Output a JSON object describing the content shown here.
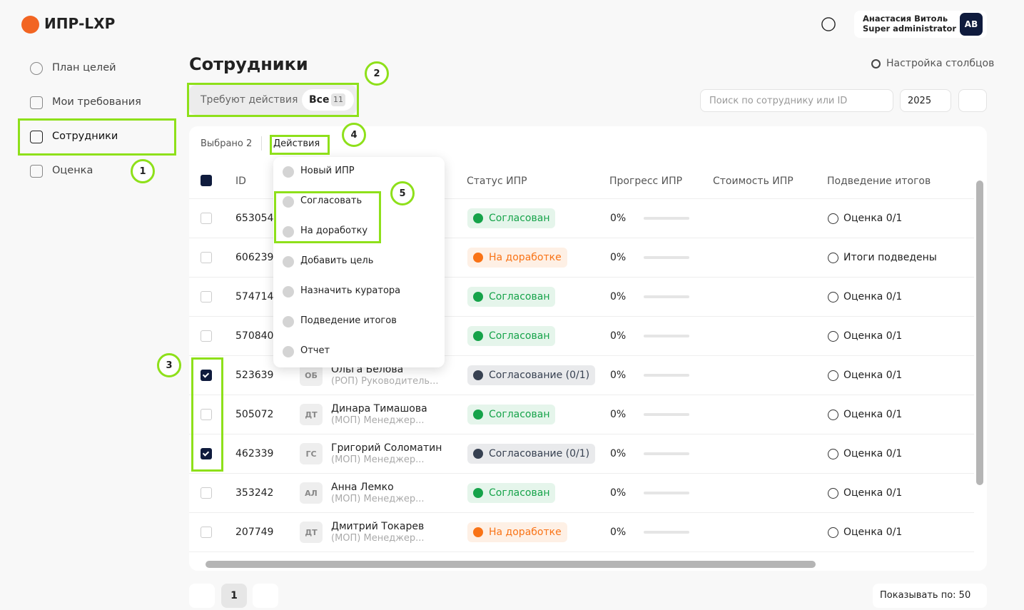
{
  "header": {
    "logo": "ИПР-LXP",
    "user_name": "Анастасия Витоль",
    "user_role": "Super administrator ru",
    "avatar": "АВ"
  },
  "sidebar": {
    "items": [
      "План целей",
      "Мои требования",
      "Сотрудники",
      "Оценка"
    ],
    "active": 2
  },
  "page": {
    "title": "Сотрудники",
    "column_settings": "Настройка столбцов",
    "tabs": [
      "Требуют действия",
      "Все"
    ],
    "tab_count": "11",
    "search_placeholder": "Поиск по сотруднику или ID",
    "year": "2025"
  },
  "toolbar": {
    "selected": "Выбрано 2",
    "actions": "Действия"
  },
  "menu": [
    "Новый ИПР",
    "Согласовать",
    "На доработку",
    "Добавить цель",
    "Назначить куратора",
    "Подведение итогов",
    "Отчет"
  ],
  "table": {
    "columns": [
      "ID",
      "Статус ИПР",
      "Прогресс ИПР",
      "Стоимость ИПР",
      "Подведение итогов"
    ],
    "rows": [
      {
        "id": "653054",
        "status": "Согласован",
        "status_color": "#16a34a",
        "progress": "0%",
        "summary": "Оценка 0/1",
        "checked": false
      },
      {
        "id": "606239",
        "status": "На доработке",
        "status_color": "#f97316",
        "progress": "0%",
        "summary": "Итоги подведены",
        "checked": false
      },
      {
        "id": "574714",
        "status": "Согласован",
        "status_color": "#16a34a",
        "progress": "0%",
        "summary": "Оценка 0/1",
        "checked": false
      },
      {
        "id": "570840",
        "status": "Согласован",
        "status_color": "#16a34a",
        "progress": "0%",
        "summary": "Оценка 0/1",
        "checked": false
      },
      {
        "id": "523639",
        "initials": "ОБ",
        "name": "Ольга Белова",
        "role": "(РОП) Руководитель...",
        "status": "Согласование (0/1)",
        "status_color": "#374151",
        "progress": "0%",
        "summary": "Оценка 0/1",
        "checked": true
      },
      {
        "id": "505072",
        "initials": "ДТ",
        "name": "Динара Тимашова",
        "role": "(МОП) Менеджер...",
        "status": "Согласован",
        "status_color": "#16a34a",
        "progress": "0%",
        "summary": "Оценка 0/1",
        "checked": false
      },
      {
        "id": "462339",
        "initials": "ГС",
        "name": "Григорий Соломатин",
        "role": "(МОП) Менеджер...",
        "status": "Согласование (0/1)",
        "status_color": "#374151",
        "progress": "0%",
        "summary": "Оценка 0/1",
        "checked": true
      },
      {
        "id": "353242",
        "initials": "АЛ",
        "name": "Анна Лемко",
        "role": "(МОП) Менеджер...",
        "status": "Согласован",
        "status_color": "#16a34a",
        "progress": "0%",
        "summary": "Оценка 0/1",
        "checked": false
      },
      {
        "id": "207749",
        "initials": "ДТ",
        "name": "Дмитрий Токарев",
        "role": "(МОП) Менеджер...",
        "status": "На доработке",
        "status_color": "#f97316",
        "progress": "0%",
        "summary": "Оценка 0/1",
        "checked": false
      }
    ]
  },
  "annotations": [
    "1",
    "2",
    "3",
    "4",
    "5"
  ],
  "pagination": {
    "page": "1",
    "page_size": "Показывать по: 50"
  }
}
